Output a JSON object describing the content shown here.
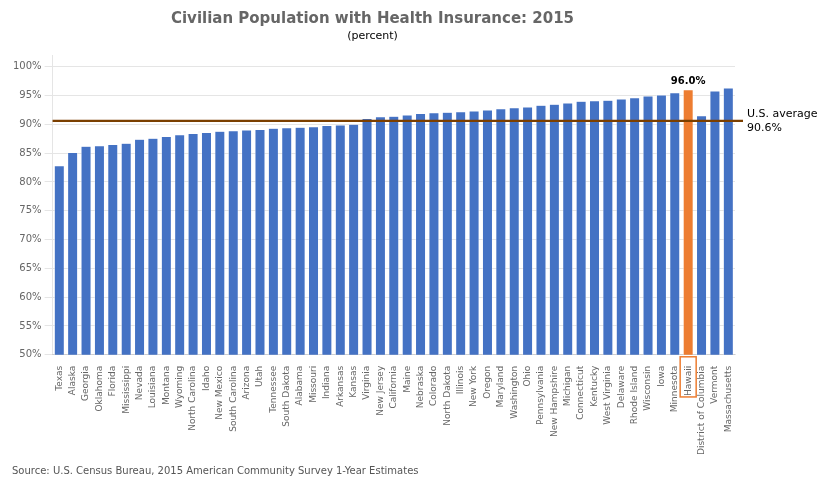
{
  "chart_data": {
    "type": "bar",
    "title": "Civilian Population with Health Insurance: 2015",
    "subtitle": "(percent)",
    "source": "Source: U.S. Census Bureau, 2015 American Community Survey 1-Year Estimates",
    "categories": [
      "Texas",
      "Alaska",
      "Georgia",
      "Oklahoma",
      "Florida",
      "Mississippi",
      "Nevada",
      "Louisiana",
      "Montana",
      "Wyoming",
      "North Carolina",
      "Idaho",
      "New Mexico",
      "South Carolina",
      "Arizona",
      "Utah",
      "Tennessee",
      "South Dakota",
      "Alabama",
      "Missouri",
      "Indiana",
      "Arkansas",
      "Kansas",
      "Virginia",
      "New Jersey",
      "California",
      "Maine",
      "Nebraska",
      "Colorado",
      "North Dakota",
      "Illinois",
      "New York",
      "Oregon",
      "Maryland",
      "Washington",
      "Ohio",
      "Pennsylvania",
      "New Hampshire",
      "Michigan",
      "Connecticut",
      "Kentucky",
      "West Virginia",
      "Delaware",
      "Rhode Island",
      "Wisconsin",
      "Iowa",
      "Minnesota",
      "Hawaii",
      "District of Columbia",
      "Vermont",
      "Massachusetts"
    ],
    "values": [
      82.8,
      85.1,
      86.2,
      86.3,
      86.5,
      86.7,
      87.4,
      87.6,
      87.9,
      88.2,
      88.4,
      88.6,
      88.8,
      88.9,
      89.0,
      89.1,
      89.3,
      89.4,
      89.5,
      89.6,
      89.8,
      89.9,
      90.0,
      91.0,
      91.3,
      91.4,
      91.6,
      91.9,
      92.0,
      92.1,
      92.2,
      92.3,
      92.5,
      92.7,
      92.9,
      93.0,
      93.3,
      93.5,
      93.7,
      94.0,
      94.1,
      94.2,
      94.4,
      94.6,
      94.9,
      95.1,
      95.5,
      96.0,
      91.5,
      95.8,
      96.3
    ],
    "colors": [
      "#4472C4",
      "#4472C4",
      "#4472C4",
      "#4472C4",
      "#4472C4",
      "#4472C4",
      "#4472C4",
      "#4472C4",
      "#4472C4",
      "#4472C4",
      "#4472C4",
      "#4472C4",
      "#4472C4",
      "#4472C4",
      "#4472C4",
      "#4472C4",
      "#4472C4",
      "#4472C4",
      "#4472C4",
      "#4472C4",
      "#4472C4",
      "#4472C4",
      "#4472C4",
      "#4472C4",
      "#4472C4",
      "#4472C4",
      "#4472C4",
      "#4472C4",
      "#4472C4",
      "#4472C4",
      "#4472C4",
      "#4472C4",
      "#4472C4",
      "#4472C4",
      "#4472C4",
      "#4472C4",
      "#4472C4",
      "#4472C4",
      "#4472C4",
      "#4472C4",
      "#4472C4",
      "#4472C4",
      "#4472C4",
      "#4472C4",
      "#4472C4",
      "#4472C4",
      "#4472C4",
      "#ED7D31",
      "#4472C4",
      "#4472C4",
      "#4472C4"
    ],
    "ylim": [
      50,
      102
    ],
    "yticks": [
      {
        "value": 50,
        "label": "50%"
      },
      {
        "value": 55,
        "label": "55%"
      },
      {
        "value": 60,
        "label": "60%"
      },
      {
        "value": 65,
        "label": "65%"
      },
      {
        "value": 70,
        "label": "70%"
      },
      {
        "value": 75,
        "label": "75%"
      },
      {
        "value": 80,
        "label": "80%"
      },
      {
        "value": 85,
        "label": "85%"
      },
      {
        "value": 90,
        "label": "90%"
      },
      {
        "value": 95,
        "label": "95%"
      },
      {
        "value": 100,
        "label": "100%"
      }
    ],
    "grid": true,
    "reference_line": {
      "value": 90.6,
      "label": "U.S. average\n90.6%",
      "color": "#7B3F00"
    },
    "annotations": [
      {
        "category": "Hawaii",
        "text": "96.0%"
      }
    ]
  }
}
